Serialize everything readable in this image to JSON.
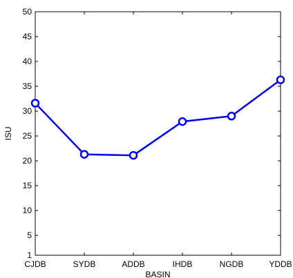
{
  "chart_data": {
    "type": "line",
    "categories": [
      "CJDB",
      "SYDB",
      "ADDB",
      "IHDB",
      "NGDB",
      "YDDB"
    ],
    "series": [
      {
        "values": [
          31.6,
          21.3,
          21.1,
          27.9,
          29.0,
          36.3
        ]
      }
    ],
    "xlabel": "BASIN",
    "ylabel": "ISU",
    "ylim": [
      1,
      50
    ],
    "yticks": [
      1,
      5,
      10,
      15,
      20,
      25,
      30,
      35,
      40,
      45,
      50
    ],
    "grid": false,
    "legend": "none",
    "line_color": "#0000ee",
    "marker": "open-circle",
    "marker_fill": "#ffffff"
  }
}
